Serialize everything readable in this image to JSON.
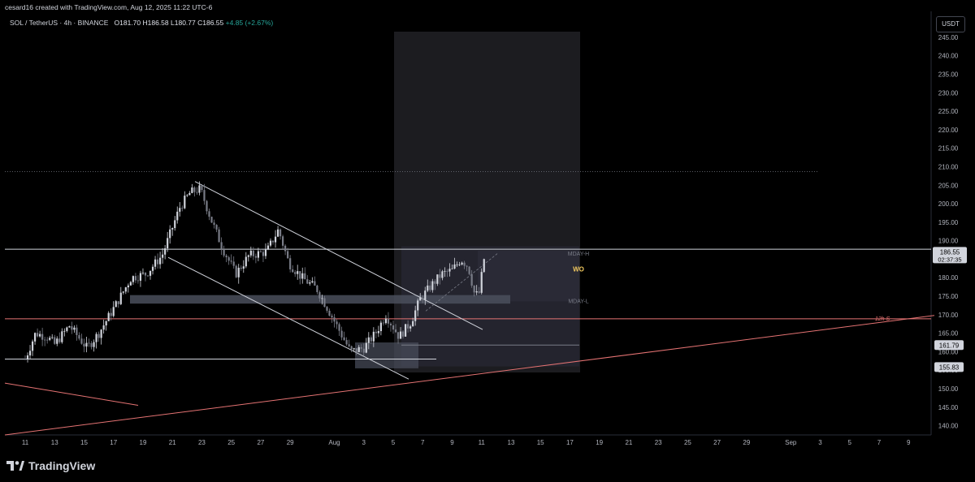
{
  "credit": "cesard16 created with TradingView.com, Aug 12, 2025 11:22 UTC-6",
  "legend": {
    "symbol": "SOL / TetherUS · 4h · BINANCE",
    "open": "O181.70",
    "high": "H186.58",
    "low": "L180.77",
    "close": "C186.55",
    "change": "+4.85 (+2.67%)"
  },
  "unit_button": "USDT",
  "brand": "TradingView",
  "colors": {
    "background": "#000000",
    "up_candle": "#d1d4dc",
    "grid": "#1c1c1c",
    "trendline": "#e57373",
    "support": "#e57373"
  },
  "chart_data": {
    "type": "candlestick",
    "symbol": "SOL/USDT",
    "interval": "4h",
    "ylim": [
      137.5,
      252
    ],
    "y_ticks": [
      140,
      145,
      150,
      155,
      160,
      165,
      170,
      175,
      180,
      185,
      190,
      195,
      200,
      205,
      210,
      215,
      220,
      225,
      230,
      235,
      240,
      245
    ],
    "x_ticks": [
      "11",
      "13",
      "15",
      "17",
      "19",
      "21",
      "23",
      "25",
      "27",
      "29",
      "Aug",
      "3",
      "5",
      "7",
      "9",
      "11",
      "13",
      "15",
      "17",
      "19",
      "21",
      "23",
      "25",
      "27",
      "29",
      "Sep",
      "3",
      "5",
      "7",
      "9"
    ],
    "price_anchors": [
      {
        "day": 0,
        "price": 158
      },
      {
        "day": 0.7,
        "price": 165
      },
      {
        "day": 1.5,
        "price": 164
      },
      {
        "day": 2,
        "price": 162
      },
      {
        "day": 3,
        "price": 167
      },
      {
        "day": 4.2,
        "price": 161
      },
      {
        "day": 5,
        "price": 165
      },
      {
        "day": 6.2,
        "price": 173
      },
      {
        "day": 7.2,
        "price": 180
      },
      {
        "day": 8.2,
        "price": 181
      },
      {
        "day": 9.3,
        "price": 186
      },
      {
        "day": 10.5,
        "price": 199
      },
      {
        "day": 11.2,
        "price": 203
      },
      {
        "day": 11.9,
        "price": 204
      },
      {
        "day": 12.6,
        "price": 196
      },
      {
        "day": 13.4,
        "price": 188
      },
      {
        "day": 14.3,
        "price": 181
      },
      {
        "day": 15.2,
        "price": 186
      },
      {
        "day": 16.4,
        "price": 187
      },
      {
        "day": 17.2,
        "price": 193
      },
      {
        "day": 17.9,
        "price": 184
      },
      {
        "day": 18.8,
        "price": 180
      },
      {
        "day": 19.8,
        "price": 177
      },
      {
        "day": 20.5,
        "price": 172
      },
      {
        "day": 21.3,
        "price": 166
      },
      {
        "day": 22.1,
        "price": 160
      },
      {
        "day": 23,
        "price": 161
      },
      {
        "day": 23.8,
        "price": 165
      },
      {
        "day": 24.5,
        "price": 170
      },
      {
        "day": 25.4,
        "price": 164
      },
      {
        "day": 26.2,
        "price": 168
      },
      {
        "day": 26.8,
        "price": 174
      },
      {
        "day": 27.6,
        "price": 178
      },
      {
        "day": 28.3,
        "price": 181
      },
      {
        "day": 29,
        "price": 182
      },
      {
        "day": 29.6,
        "price": 185
      },
      {
        "day": 30.1,
        "price": 183
      },
      {
        "day": 30.5,
        "price": 176
      },
      {
        "day": 30.8,
        "price": 175
      },
      {
        "day": 31.2,
        "price": 186
      }
    ],
    "levels": [
      {
        "label": "MDAY-H",
        "price": 186.6
      },
      {
        "label": "WO",
        "price": 182.4
      },
      {
        "label": "MDAY-L",
        "price": 173.8
      },
      {
        "label": "12h S",
        "price": 169.1
      }
    ],
    "horizontal_lines": [
      {
        "price": 187.7,
        "style": "solid",
        "color": "#d1d4dc"
      },
      {
        "price": 208.7,
        "style": "dotted",
        "color": "#787b86"
      },
      {
        "price": 168.9,
        "style": "solid",
        "color": "#e57373"
      },
      {
        "price": 158,
        "style": "solid",
        "color": "#d1d4dc"
      },
      {
        "price": 161.79,
        "style": "solid",
        "color": "#787b86"
      }
    ],
    "price_labels": [
      {
        "price": 186.55,
        "text": "186.55",
        "countdown": "02:37:35"
      },
      {
        "price": 161.79,
        "text": "161.79"
      },
      {
        "price": 155.83,
        "text": "155.83"
      }
    ]
  }
}
